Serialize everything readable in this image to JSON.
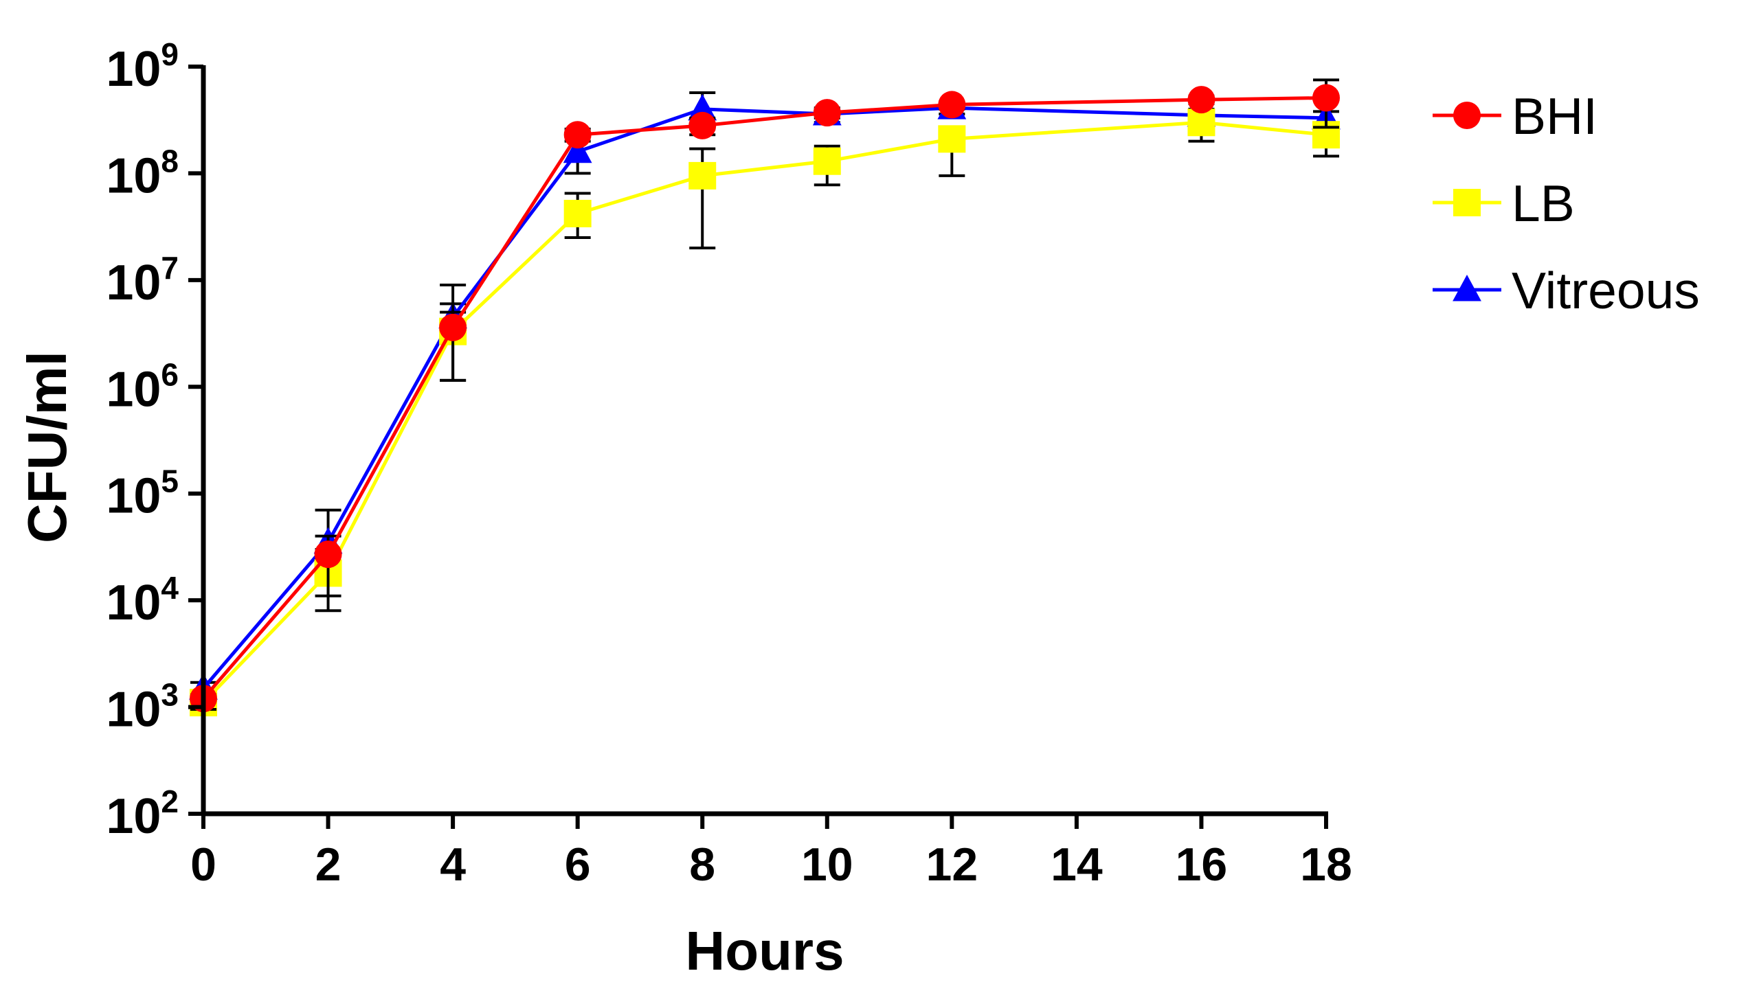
{
  "chart_data": {
    "type": "line",
    "title": "",
    "xlabel": "Hours",
    "ylabel": "CFU/ml",
    "y_scale": "log10",
    "xlim": [
      0,
      18
    ],
    "ylim": [
      100,
      1000000000
    ],
    "x_ticks": [
      0,
      2,
      4,
      6,
      8,
      10,
      12,
      14,
      16,
      18
    ],
    "x_tick_labels": [
      "0",
      "2",
      "4",
      "6",
      "8",
      "10",
      "12",
      "14",
      "16",
      "18"
    ],
    "y_tick_exponents": [
      2,
      3,
      4,
      5,
      6,
      7,
      8,
      9
    ],
    "y_tick_base": "10",
    "grid": false,
    "legend_position": "right",
    "series": [
      {
        "name": "Vitreous",
        "color": "#0000ff",
        "marker": "triangle",
        "x": [
          0,
          2,
          4,
          6,
          8,
          10,
          12,
          16,
          18
        ],
        "values": [
          1500,
          35000,
          4500000,
          160000000,
          400000000,
          360000000,
          410000000,
          350000000,
          330000000
        ],
        "error_upper": [
          1700,
          70000,
          6000000,
          230000000,
          570000000,
          400000000,
          450000000,
          400000000,
          380000000
        ],
        "error_lower": [
          1300,
          17000,
          3000000,
          100000000,
          260000000,
          300000000,
          360000000,
          300000000,
          280000000
        ]
      },
      {
        "name": "LB",
        "color": "#ffff00",
        "marker": "square",
        "x": [
          0,
          2,
          4,
          6,
          8,
          10,
          12,
          16,
          18
        ],
        "values": [
          1100,
          18000,
          3300000,
          42000000,
          95000000,
          130000000,
          210000000,
          300000000,
          230000000
        ],
        "error_upper": [
          1200,
          30000,
          5000000,
          65000000,
          170000000,
          180000000,
          260000000,
          330000000,
          270000000
        ],
        "error_lower": [
          850,
          8000,
          1150000,
          25000000,
          20000000,
          78000000,
          95000000,
          200000000,
          145000000
        ]
      },
      {
        "name": "BHI",
        "color": "#ff0000",
        "marker": "circle",
        "x": [
          0,
          2,
          4,
          6,
          8,
          10,
          12,
          16,
          18
        ],
        "values": [
          1200,
          27000,
          3600000,
          230000000,
          280000000,
          370000000,
          440000000,
          490000000,
          510000000
        ],
        "error_upper": [
          1300,
          40000,
          9000000,
          260000000,
          330000000,
          410000000,
          470000000,
          530000000,
          750000000
        ],
        "error_lower": [
          950,
          11000,
          1150000,
          200000000,
          230000000,
          330000000,
          400000000,
          450000000,
          270000000
        ]
      }
    ],
    "legend_order": [
      "BHI",
      "LB",
      "Vitreous"
    ]
  }
}
